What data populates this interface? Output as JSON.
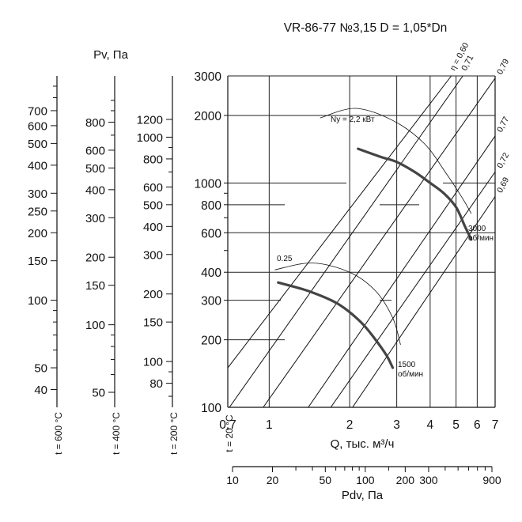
{
  "chart_data": {
    "type": "line",
    "title": "VR-86-77 №3,15 D = 1,05*Dn",
    "xlabel": "Q, тыс. м³/ч",
    "ylabel": "Pv, Па",
    "pdv_label": "Pdv, Па",
    "x_scale": "log",
    "y_scale": "log",
    "xlim": [
      0.7,
      7
    ],
    "ylim": [
      100,
      3000
    ],
    "x_ticks": [
      0.7,
      1,
      2,
      3,
      4,
      5,
      6,
      7
    ],
    "x_tick_labels": [
      "0,7",
      "1",
      "2",
      "3",
      "4",
      "5",
      "6",
      "7"
    ],
    "y_ticks": [
      100,
      200,
      300,
      400,
      600,
      800,
      1000,
      2000,
      3000
    ],
    "y_tick_labels": [
      "100",
      "200",
      "300",
      "400",
      "600",
      "800",
      "1000",
      "2000",
      "3000"
    ],
    "grid": true,
    "temp_scales": [
      {
        "label": "t = 600 °C",
        "factor": 0.3333,
        "labels": [
          40,
          50,
          100,
          150,
          200,
          250,
          300,
          400,
          500,
          600,
          700
        ]
      },
      {
        "label": "t = 400 °C",
        "factor": 0.4286,
        "labels": [
          50,
          100,
          150,
          200,
          300,
          400,
          500,
          600,
          800
        ]
      },
      {
        "label": "t = 200 °C",
        "factor": 0.625,
        "labels": [
          80,
          100,
          150,
          200,
          300,
          400,
          500,
          600,
          800,
          1000,
          1200
        ]
      },
      {
        "label": "t = 20 °C",
        "factor": 1.0,
        "labels": []
      }
    ],
    "pdv_axis": {
      "labels": [
        10,
        20,
        50,
        100,
        200,
        300,
        900
      ],
      "ticks": [
        10,
        20,
        30,
        40,
        50,
        60,
        70,
        80,
        90,
        100,
        150,
        200,
        300,
        400,
        500,
        600,
        700,
        800,
        900
      ]
    },
    "series": [
      {
        "name": "3000 об/мин",
        "label": "3000\nоб/мин",
        "x": [
          2.15,
          2.6,
          3.0,
          3.5,
          4.0,
          4.5,
          5.0,
          5.4,
          5.7
        ],
        "y": [
          1420,
          1310,
          1240,
          1120,
          1000,
          900,
          780,
          640,
          560
        ]
      },
      {
        "name": "1500 об/мин",
        "label": "1500\nоб/мин",
        "x": [
          1.08,
          1.4,
          1.8,
          2.2,
          2.5,
          2.75,
          2.9
        ],
        "y": [
          360,
          330,
          290,
          240,
          200,
          170,
          150
        ]
      }
    ],
    "efficiency_lines": [
      {
        "label": "η = 0,60",
        "x": [
          0.7,
          4.8
        ],
        "y": [
          150,
          3000
        ]
      },
      {
        "label": "0,71",
        "x": [
          0.71,
          5.3
        ],
        "y": [
          100,
          3000
        ]
      },
      {
        "label": "0,79",
        "x": [
          0.95,
          7.0
        ],
        "y": [
          100,
          2930
        ]
      },
      {
        "label": "0,77",
        "x": [
          1.4,
          7.0
        ],
        "y": [
          100,
          1620
        ]
      },
      {
        "label": "0,72",
        "x": [
          1.7,
          7.0
        ],
        "y": [
          100,
          1120
        ]
      },
      {
        "label": "0,69",
        "x": [
          2.05,
          7.0
        ],
        "y": [
          100,
          870
        ]
      }
    ],
    "power_lines": [
      {
        "label": "Ny = 2,2 кВт",
        "x": [
          1.55,
          2.1,
          2.9,
          3.8,
          4.6,
          5.3,
          5.7
        ],
        "y": [
          1950,
          2150,
          1900,
          1500,
          1100,
          850,
          730
        ]
      },
      {
        "label": "0.25",
        "x": [
          1.05,
          1.45,
          2.0,
          2.5,
          2.9,
          3.1
        ],
        "y": [
          410,
          440,
          400,
          330,
          250,
          190
        ]
      }
    ]
  }
}
